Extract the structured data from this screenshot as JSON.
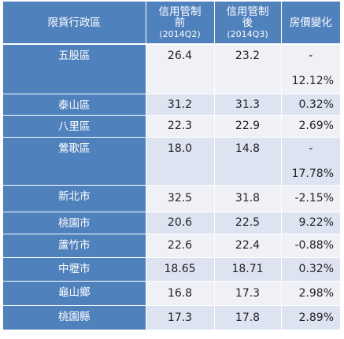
{
  "headers": {
    "district": "限貨行政區",
    "before_line1": "信用管制",
    "before_line2": "前",
    "before_period": "(2014Q2)",
    "after_line1": "信用管制",
    "after_line2": "後",
    "after_period": "(2014Q3)",
    "change": "房價變化"
  },
  "rows": [
    {
      "district": "五股區",
      "before": "26.4",
      "after": "23.2",
      "change_sign": "-",
      "change": "12.12%"
    },
    {
      "district": "泰山區",
      "before": "31.2",
      "after": "31.3",
      "change": "0.32%"
    },
    {
      "district": "八里區",
      "before": "22.3",
      "after": "22.9",
      "change": "2.69%"
    },
    {
      "district": "鶯歌區",
      "before": "18.0",
      "after": "14.8",
      "change_sign": "-",
      "change": "17.78%"
    },
    {
      "district": "新北市",
      "before": "32.5",
      "after": "31.8",
      "change": "-2.15%"
    },
    {
      "district": "桃園市",
      "before": "20.6",
      "after": "22.5",
      "change": "9.22%"
    },
    {
      "district": "蘆竹市",
      "before": "22.6",
      "after": "22.4",
      "change": "-0.88%"
    },
    {
      "district": "中壢市",
      "before": "18.65",
      "after": "18.71",
      "change": "0.32%"
    },
    {
      "district": "龜山鄉",
      "before": "16.8",
      "after": "17.3",
      "change": "2.98%"
    },
    {
      "district": "桃園縣",
      "before": "17.3",
      "after": "17.8",
      "change": "2.89%"
    }
  ]
}
